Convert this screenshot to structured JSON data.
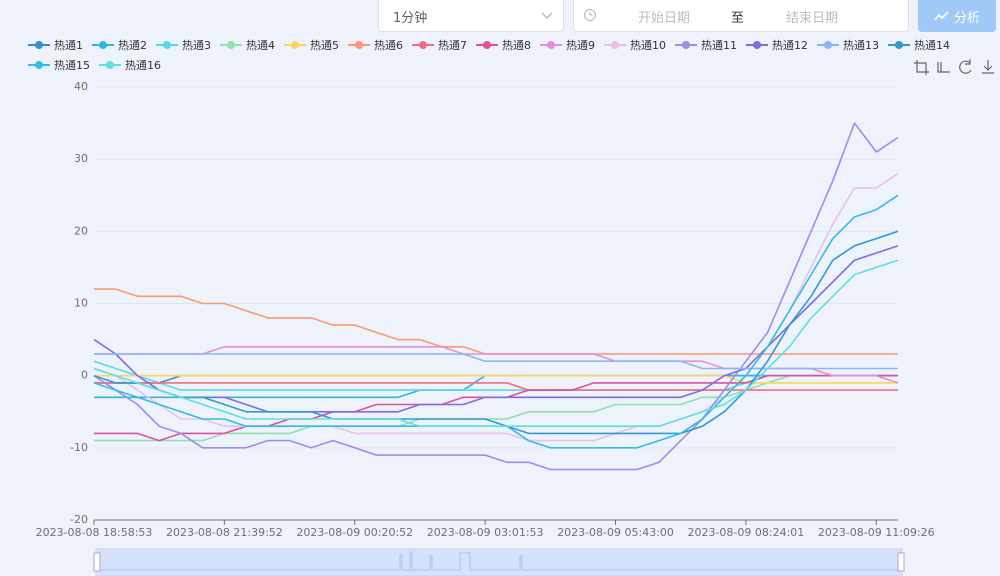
{
  "ui": {
    "interval": "1分钟",
    "start_placeholder": "开始日期",
    "separator": "至",
    "end_placeholder": "结束日期",
    "button": "分析"
  },
  "chart_data": {
    "type": "line",
    "categories": [
      "2023-08-08 18:58:53",
      null,
      null,
      null,
      null,
      null,
      "2023-08-08 21:39:52",
      null,
      null,
      null,
      null,
      null,
      "2023-08-09 00:20:52",
      null,
      null,
      null,
      null,
      null,
      "2023-08-09 03:01:53",
      null,
      null,
      null,
      null,
      null,
      "2023-08-09 05:43:00",
      null,
      null,
      null,
      null,
      null,
      "2023-08-09 08:24:01",
      null,
      null,
      null,
      null,
      null,
      "2023-08-09 11:09:26",
      null
    ],
    "ylim": [
      -20,
      40
    ],
    "yticks": [
      -20,
      -10,
      0,
      10,
      20,
      30,
      40
    ],
    "grid": true,
    "series": [
      {
        "name": "热通1",
        "color": "#3b8fd0",
        "values": [
          -1,
          -1,
          -1,
          -1,
          0,
          0,
          0,
          0,
          0,
          0,
          0,
          0,
          0,
          0,
          0,
          0,
          0,
          0,
          0,
          0,
          0,
          0,
          0,
          0,
          0,
          0,
          0,
          0,
          0,
          0,
          0,
          0,
          0,
          0,
          0,
          0,
          0,
          0
        ]
      },
      {
        "name": "热通2",
        "color": "#2eb6e0",
        "values": [
          -3,
          -3,
          -3,
          -3,
          -3,
          -3,
          -3,
          -3,
          -3,
          -3,
          -3,
          -3,
          -3,
          -3,
          -3,
          -2,
          -2,
          -2,
          0,
          0,
          0,
          0,
          0,
          0,
          0,
          0,
          0,
          0,
          0,
          0,
          0,
          0,
          0,
          0,
          0,
          0,
          0,
          0
        ]
      },
      {
        "name": "热通3",
        "color": "#5ad8e6",
        "values": [
          2,
          1,
          0,
          -1,
          -2,
          -2,
          -2,
          -2,
          -2,
          -2,
          -2,
          -2,
          -2,
          -2,
          -2,
          -2,
          -2,
          -2,
          -2,
          -2,
          -2,
          -2,
          -2,
          -2,
          -2,
          -2,
          -2,
          -2,
          -2,
          -2,
          -1,
          0,
          0,
          0,
          0,
          0,
          0,
          0
        ]
      },
      {
        "name": "热通4",
        "color": "#91e0b0",
        "values": [
          -9,
          -9,
          -9,
          -9,
          -9,
          -9,
          -8,
          -8,
          -8,
          -8,
          -7,
          -7,
          -7,
          -7,
          -7,
          -6,
          -6,
          -6,
          -6,
          -6,
          -5,
          -5,
          -5,
          -5,
          -4,
          -4,
          -4,
          -4,
          -3,
          -3,
          -2,
          -1,
          0,
          0,
          0,
          0,
          0,
          0
        ]
      },
      {
        "name": "热通5",
        "color": "#fcd45c",
        "values": [
          0,
          0,
          0,
          0,
          0,
          0,
          0,
          0,
          0,
          0,
          0,
          0,
          0,
          0,
          0,
          0,
          0,
          0,
          0,
          0,
          0,
          0,
          0,
          0,
          0,
          0,
          0,
          0,
          0,
          0,
          -1,
          -1,
          -1,
          -1,
          -1,
          -1,
          -1,
          -1
        ]
      },
      {
        "name": "热通6",
        "color": "#fc9870",
        "values": [
          12,
          12,
          11,
          11,
          11,
          10,
          10,
          9,
          8,
          8,
          8,
          7,
          7,
          6,
          5,
          5,
          4,
          4,
          3,
          3,
          3,
          3,
          3,
          3,
          3,
          3,
          3,
          3,
          3,
          3,
          3,
          3,
          3,
          3,
          3,
          3,
          3,
          3
        ]
      },
      {
        "name": "热通7",
        "color": "#f36c86",
        "values": [
          -1,
          -1,
          -1,
          -1,
          -1,
          -1,
          -1,
          -1,
          -1,
          -1,
          -1,
          -1,
          -1,
          -1,
          -1,
          -1,
          -1,
          -1,
          -1,
          -1,
          -2,
          -2,
          -2,
          -2,
          -2,
          -2,
          -2,
          -2,
          -2,
          -2,
          -2,
          -2,
          -2,
          -2,
          -2,
          -2,
          -2,
          -2
        ]
      },
      {
        "name": "热通8",
        "color": "#e04fa0",
        "values": [
          -8,
          -8,
          -8,
          -9,
          -8,
          -8,
          -8,
          -7,
          -7,
          -6,
          -6,
          -5,
          -5,
          -4,
          -4,
          -4,
          -4,
          -3,
          -3,
          -3,
          -2,
          -2,
          -2,
          -1,
          -1,
          -1,
          -1,
          -1,
          -1,
          -1,
          -1,
          0,
          0,
          0,
          0,
          0,
          0,
          0
        ]
      },
      {
        "name": "热通9",
        "color": "#e88ed4",
        "values": [
          3,
          3,
          3,
          3,
          3,
          3,
          4,
          4,
          4,
          4,
          4,
          4,
          4,
          4,
          4,
          4,
          4,
          3,
          3,
          3,
          3,
          3,
          3,
          3,
          2,
          2,
          2,
          2,
          2,
          1,
          1,
          1,
          1,
          1,
          0,
          0,
          0,
          -1
        ]
      },
      {
        "name": "热通10",
        "color": "#e9bff0",
        "values": [
          1,
          0,
          -2,
          -4,
          -6,
          -6,
          -7,
          -7,
          -7,
          -7,
          -7,
          -7,
          -8,
          -8,
          -8,
          -8,
          -8,
          -8,
          -8,
          -8,
          -9,
          -9,
          -9,
          -9,
          -8,
          -7,
          -7,
          -6,
          -5,
          -3,
          0,
          4,
          9,
          15,
          21,
          26,
          26,
          28
        ]
      },
      {
        "name": "热通11",
        "color": "#9b8ee8",
        "values": [
          0,
          -2,
          -4,
          -7,
          -8,
          -10,
          -10,
          -10,
          -9,
          -9,
          -10,
          -9,
          -10,
          -11,
          -11,
          -11,
          -11,
          -11,
          -11,
          -12,
          -12,
          -13,
          -13,
          -13,
          -13,
          -13,
          -12,
          -9,
          -6,
          -2,
          2,
          6,
          13,
          20,
          27,
          35,
          31,
          33
        ]
      },
      {
        "name": "热通12",
        "color": "#7a6fe0",
        "values": [
          5,
          3,
          0,
          -2,
          -3,
          -3,
          -3,
          -4,
          -5,
          -5,
          -5,
          -5,
          -5,
          -5,
          -5,
          -4,
          -4,
          -4,
          -3,
          -3,
          -3,
          -3,
          -3,
          -3,
          -3,
          -3,
          -3,
          -3,
          -2,
          0,
          1,
          4,
          7,
          10,
          13,
          16,
          17,
          18
        ]
      },
      {
        "name": "热通13",
        "color": "#8ab6f2",
        "values": [
          3,
          3,
          3,
          3,
          3,
          3,
          3,
          3,
          3,
          3,
          3,
          3,
          3,
          3,
          3,
          3,
          3,
          3,
          2,
          2,
          2,
          2,
          2,
          2,
          2,
          2,
          2,
          2,
          1,
          1,
          1,
          1,
          1,
          1,
          1,
          1,
          1,
          1
        ]
      },
      {
        "name": "热通14",
        "color": "#2f9ad6",
        "values": [
          0,
          -1,
          -1,
          -2,
          -3,
          -3,
          -4,
          -5,
          -5,
          -5,
          -5,
          -6,
          -6,
          -6,
          -6,
          -6,
          -6,
          -6,
          -6,
          -7,
          -8,
          -8,
          -8,
          -8,
          -8,
          -8,
          -8,
          -8,
          -7,
          -5,
          -2,
          2,
          7,
          11,
          16,
          18,
          19,
          20
        ]
      },
      {
        "name": "热通15",
        "color": "#34bde0",
        "values": [
          -1,
          -2,
          -3,
          -4,
          -5,
          -6,
          -6,
          -7,
          -7,
          -7,
          -7,
          -7,
          -7,
          -7,
          -7,
          -7,
          -7,
          -7,
          -7,
          -7,
          -9,
          -10,
          -10,
          -10,
          -10,
          -10,
          -9,
          -8,
          -6,
          -3,
          0,
          4,
          9,
          14,
          19,
          22,
          23,
          25
        ]
      },
      {
        "name": "热通16",
        "color": "#5de0e0",
        "values": [
          1,
          0,
          -1,
          -2,
          -3,
          -4,
          -5,
          -6,
          -6,
          -6,
          -6,
          -6,
          -6,
          -6,
          -6,
          -7,
          -7,
          -7,
          -7,
          -7,
          -7,
          -7,
          -7,
          -7,
          -7,
          -7,
          -7,
          -6,
          -5,
          -4,
          -2,
          1,
          4,
          8,
          11,
          14,
          15,
          16
        ]
      }
    ]
  }
}
